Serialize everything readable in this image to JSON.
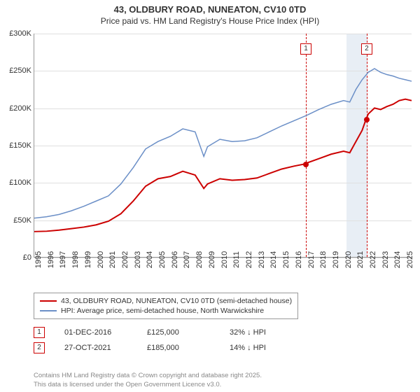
{
  "title": {
    "line1": "43, OLDBURY ROAD, NUNEATON, CV10 0TD",
    "line2": "Price paid vs. HM Land Registry's House Price Index (HPI)"
  },
  "chart": {
    "type": "line",
    "background_color": "#ffffff",
    "grid_color": "#e0e0e0",
    "axis_color": "#999999",
    "y": {
      "min": 0,
      "max": 300000,
      "tick_step": 50000,
      "tick_labels": [
        "£0",
        "£50K",
        "£100K",
        "£150K",
        "£200K",
        "£250K",
        "£300K"
      ],
      "label_fontsize": 11
    },
    "x": {
      "min": 1995,
      "max": 2025.5,
      "ticks": [
        1995,
        1996,
        1997,
        1998,
        1999,
        2000,
        2001,
        2002,
        2003,
        2004,
        2005,
        2006,
        2007,
        2008,
        2009,
        2010,
        2011,
        2012,
        2013,
        2014,
        2015,
        2016,
        2017,
        2018,
        2019,
        2020,
        2021,
        2022,
        2023,
        2024,
        2025
      ],
      "label_fontsize": 11
    },
    "shaded_band": {
      "x_start": 2020.2,
      "x_end": 2021.9,
      "color": "#e8eef5"
    },
    "series": [
      {
        "name": "43, OLDBURY ROAD, NUNEATON, CV10 0TD (semi-detached house)",
        "color": "#cc0000",
        "line_width": 2,
        "points": [
          [
            1995,
            34000
          ],
          [
            1996,
            34500
          ],
          [
            1997,
            36000
          ],
          [
            1998,
            38000
          ],
          [
            1999,
            40000
          ],
          [
            2000,
            43000
          ],
          [
            2001,
            48000
          ],
          [
            2002,
            58000
          ],
          [
            2003,
            75000
          ],
          [
            2004,
            95000
          ],
          [
            2005,
            105000
          ],
          [
            2006,
            108000
          ],
          [
            2007,
            115000
          ],
          [
            2008,
            110000
          ],
          [
            2008.7,
            92000
          ],
          [
            2009,
            98000
          ],
          [
            2010,
            105000
          ],
          [
            2011,
            103000
          ],
          [
            2012,
            104000
          ],
          [
            2013,
            106000
          ],
          [
            2014,
            112000
          ],
          [
            2015,
            118000
          ],
          [
            2016,
            122000
          ],
          [
            2016.92,
            125000
          ],
          [
            2017,
            126000
          ],
          [
            2018,
            132000
          ],
          [
            2019,
            138000
          ],
          [
            2020,
            142000
          ],
          [
            2020.5,
            140000
          ],
          [
            2021,
            155000
          ],
          [
            2021.5,
            170000
          ],
          [
            2021.82,
            185000
          ],
          [
            2022,
            192000
          ],
          [
            2022.5,
            200000
          ],
          [
            2023,
            198000
          ],
          [
            2023.5,
            202000
          ],
          [
            2024,
            205000
          ],
          [
            2024.5,
            210000
          ],
          [
            2025,
            212000
          ],
          [
            2025.5,
            210000
          ]
        ]
      },
      {
        "name": "HPI: Average price, semi-detached house, North Warwickshire",
        "color": "#6b8fc7",
        "line_width": 1.5,
        "points": [
          [
            1995,
            52000
          ],
          [
            1996,
            54000
          ],
          [
            1997,
            57000
          ],
          [
            1998,
            62000
          ],
          [
            1999,
            68000
          ],
          [
            2000,
            75000
          ],
          [
            2001,
            82000
          ],
          [
            2002,
            98000
          ],
          [
            2003,
            120000
          ],
          [
            2004,
            145000
          ],
          [
            2005,
            155000
          ],
          [
            2006,
            162000
          ],
          [
            2007,
            172000
          ],
          [
            2008,
            168000
          ],
          [
            2008.7,
            135000
          ],
          [
            2009,
            148000
          ],
          [
            2010,
            158000
          ],
          [
            2011,
            155000
          ],
          [
            2012,
            156000
          ],
          [
            2013,
            160000
          ],
          [
            2014,
            168000
          ],
          [
            2015,
            176000
          ],
          [
            2016,
            183000
          ],
          [
            2017,
            190000
          ],
          [
            2018,
            198000
          ],
          [
            2019,
            205000
          ],
          [
            2020,
            210000
          ],
          [
            2020.5,
            208000
          ],
          [
            2021,
            225000
          ],
          [
            2021.5,
            238000
          ],
          [
            2022,
            248000
          ],
          [
            2022.5,
            253000
          ],
          [
            2023,
            248000
          ],
          [
            2023.5,
            245000
          ],
          [
            2024,
            243000
          ],
          [
            2024.5,
            240000
          ],
          [
            2025,
            238000
          ],
          [
            2025.5,
            236000
          ]
        ]
      }
    ],
    "markers": [
      {
        "id": "1",
        "x": 2016.92,
        "y": 125000,
        "line_color": "#cc0000",
        "flag_border": "#cc0000",
        "dot_color": "#cc0000",
        "date": "01-DEC-2016",
        "price": "£125,000",
        "delta": "32% ↓ HPI"
      },
      {
        "id": "2",
        "x": 2021.82,
        "y": 185000,
        "line_color": "#cc0000",
        "flag_border": "#cc0000",
        "dot_color": "#cc0000",
        "date": "27-OCT-2021",
        "price": "£185,000",
        "delta": "14% ↓ HPI"
      }
    ]
  },
  "attribution": {
    "line1": "Contains HM Land Registry data © Crown copyright and database right 2025.",
    "line2": "This data is licensed under the Open Government Licence v3.0."
  }
}
